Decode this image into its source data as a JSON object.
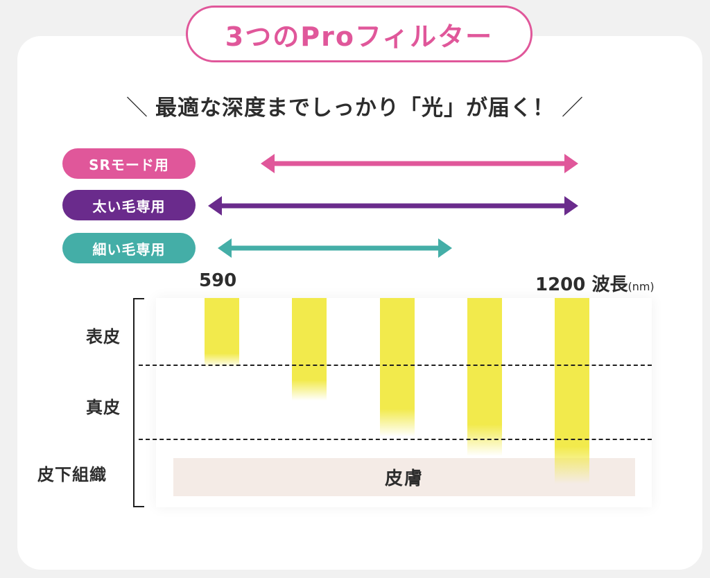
{
  "title": "3つのProフィルター",
  "headline": {
    "left_slash": "＼",
    "text": "最適な深度までしっかり「光」が届く！",
    "right_slash": "／"
  },
  "modes": [
    {
      "label": "SRモード用",
      "color": "#e0579a"
    },
    {
      "label": "太い毛専用",
      "color": "#6a2b8c"
    },
    {
      "label": "細い毛専用",
      "color": "#44aea7"
    }
  ],
  "wavelength_axis": {
    "min_label": "590",
    "max_label": "1200",
    "name": "波長",
    "unit": "(nm)"
  },
  "layers": {
    "epidermis": "表皮",
    "dermis": "真皮",
    "subcutaneous": "皮下組織"
  },
  "skin_label": "皮膚",
  "colors": {
    "accent_pink": "#e0579a",
    "accent_purple": "#6a2b8c",
    "accent_teal": "#44aea7",
    "light_yellow": "#f2ea4c",
    "skin_beige": "#f4ebe6"
  }
}
